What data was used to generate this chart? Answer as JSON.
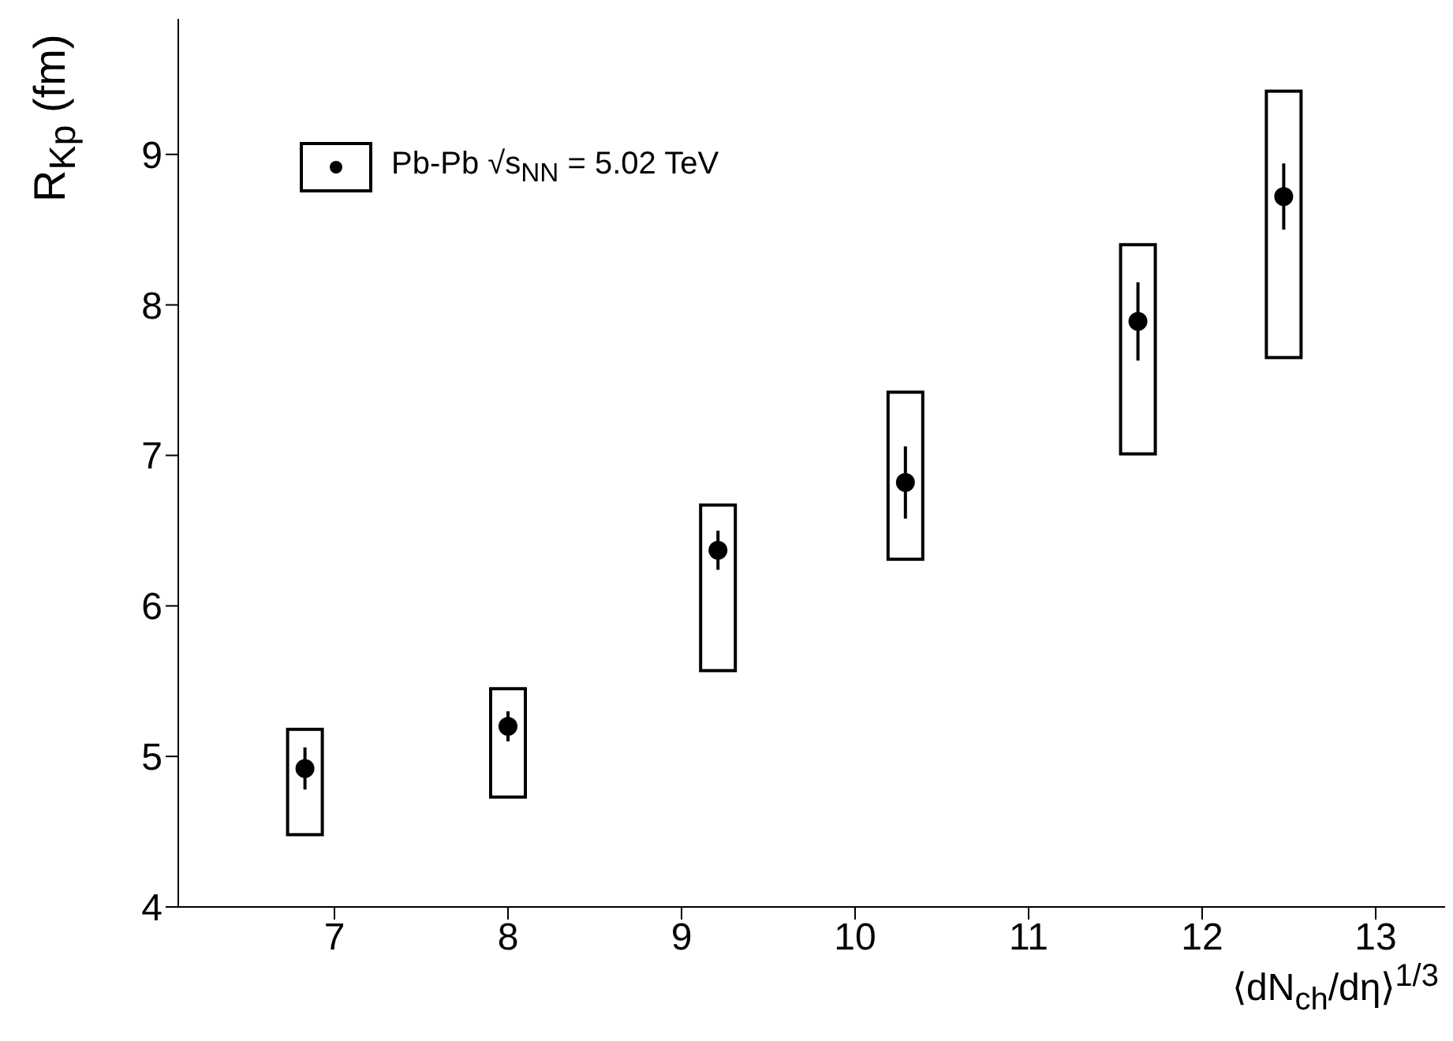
{
  "chart_data": {
    "type": "scatter",
    "xlabel": "⟨dN$_{ch}$/dη⟩$^{1/3}$",
    "ylabel": "R$_{Kp}$ (fm)",
    "xlim": [
      6.1,
      13.4
    ],
    "xticks": [
      7,
      8,
      9,
      10,
      11,
      12,
      13
    ],
    "ylim": [
      4,
      9.9
    ],
    "yticks": [
      4,
      5,
      6,
      7,
      8,
      9
    ],
    "grid": false,
    "legend": "top left",
    "marker": "circle",
    "series": [
      {
        "type": "bar",
        "color": "#000000",
        "x": [
          6.83,
          8.0,
          9.21,
          10.29,
          11.63,
          12.47
        ],
        "base": [
          4.48,
          4.73,
          5.57,
          6.31,
          7.01,
          7.65
        ],
        "values": [
          0.7,
          0.72,
          1.1,
          1.11,
          1.39,
          1.77
        ]
      },
      {
        "name": "Pb-Pb √s$_{NN}$ = 5.02 TeV",
        "color": "#000000",
        "x": [
          6.83,
          8.0,
          9.21,
          10.29,
          11.63,
          12.47
        ],
        "values": [
          4.92,
          5.2,
          6.37,
          6.82,
          7.89,
          8.72
        ],
        "errors": [
          0.14,
          0.1,
          0.13,
          0.24,
          0.26,
          0.22
        ]
      }
    ]
  }
}
